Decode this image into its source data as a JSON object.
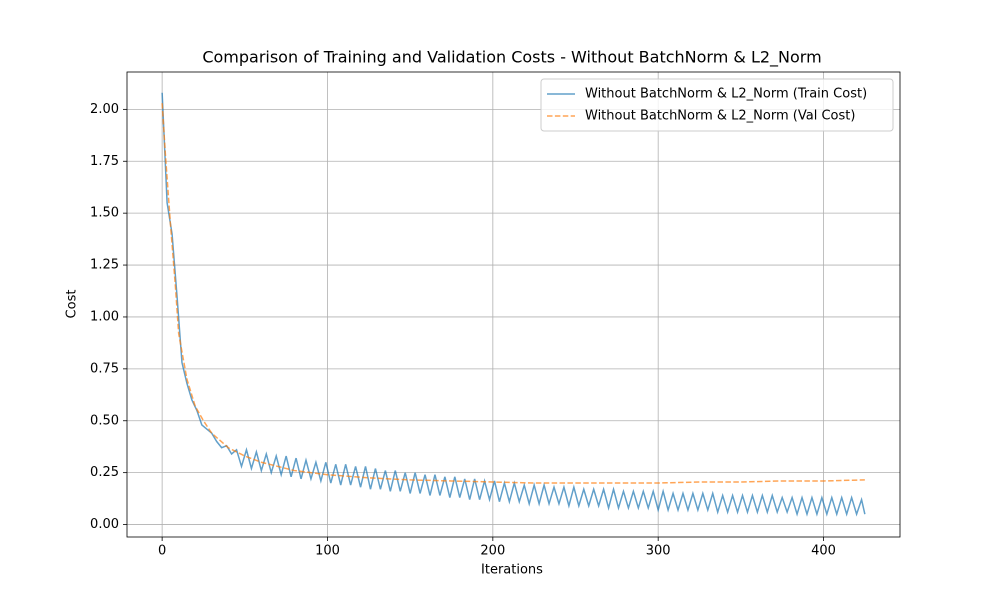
{
  "chart_data": {
    "type": "line",
    "title": "Comparison of Training and Validation Costs - Without BatchNorm & L2_Norm",
    "x_label": "Iterations",
    "y_label": "Cost",
    "xlim": [
      -21.25,
      446.25
    ],
    "ylim": [
      -0.06,
      2.18
    ],
    "xticks": [
      0,
      100,
      200,
      300,
      400
    ],
    "yticks": [
      {
        "value": 0,
        "label": "0.00"
      },
      {
        "value": 0.25,
        "label": "0.25"
      },
      {
        "value": 0.5,
        "label": "0.50"
      },
      {
        "value": 0.75,
        "label": "0.75"
      },
      {
        "value": 1,
        "label": "1.00"
      },
      {
        "value": 1.25,
        "label": "1.25"
      },
      {
        "value": 1.5,
        "label": "1.50"
      },
      {
        "value": 1.75,
        "label": "1.75"
      },
      {
        "value": 2,
        "label": "2.00"
      }
    ],
    "grid": true,
    "legend": "upper right",
    "series": [
      {
        "name": "Without BatchNorm & L2_Norm (Train Cost)",
        "color": "#1f77b4",
        "dashed": false,
        "x": [
          0,
          3,
          6,
          9,
          12,
          15,
          18,
          21,
          24,
          27,
          30,
          33,
          36,
          39,
          42,
          45,
          48,
          51,
          54,
          57,
          60,
          63,
          66,
          69,
          72,
          75,
          78,
          81,
          84,
          87,
          90,
          93,
          96,
          99,
          102,
          105,
          108,
          111,
          114,
          117,
          120,
          123,
          126,
          129,
          132,
          135,
          138,
          141,
          144,
          147,
          150,
          153,
          156,
          159,
          162,
          165,
          168,
          171,
          174,
          177,
          180,
          183,
          186,
          189,
          192,
          195,
          198,
          201,
          204,
          207,
          210,
          213,
          216,
          219,
          222,
          225,
          228,
          231,
          234,
          237,
          240,
          243,
          246,
          249,
          252,
          255,
          258,
          261,
          264,
          267,
          270,
          273,
          276,
          279,
          282,
          285,
          288,
          291,
          294,
          297,
          300,
          303,
          306,
          309,
          312,
          315,
          318,
          321,
          324,
          327,
          330,
          333,
          336,
          339,
          342,
          345,
          348,
          351,
          354,
          357,
          360,
          363,
          366,
          369,
          372,
          375,
          378,
          381,
          384,
          387,
          390,
          393,
          396,
          399,
          402,
          405,
          408,
          411,
          414,
          417,
          420,
          423,
          425
        ],
        "values": [
          2.08,
          1.55,
          1.4,
          1.1,
          0.78,
          0.68,
          0.6,
          0.55,
          0.48,
          0.46,
          0.44,
          0.4,
          0.37,
          0.38,
          0.34,
          0.36,
          0.28,
          0.36,
          0.27,
          0.35,
          0.26,
          0.34,
          0.25,
          0.33,
          0.24,
          0.33,
          0.23,
          0.32,
          0.22,
          0.31,
          0.22,
          0.3,
          0.21,
          0.3,
          0.2,
          0.29,
          0.19,
          0.29,
          0.19,
          0.28,
          0.18,
          0.28,
          0.17,
          0.27,
          0.17,
          0.26,
          0.16,
          0.26,
          0.16,
          0.25,
          0.15,
          0.25,
          0.15,
          0.24,
          0.14,
          0.24,
          0.14,
          0.23,
          0.13,
          0.23,
          0.13,
          0.22,
          0.12,
          0.22,
          0.12,
          0.21,
          0.12,
          0.21,
          0.11,
          0.2,
          0.11,
          0.2,
          0.11,
          0.19,
          0.1,
          0.19,
          0.1,
          0.19,
          0.1,
          0.18,
          0.1,
          0.18,
          0.09,
          0.18,
          0.09,
          0.17,
          0.09,
          0.17,
          0.09,
          0.17,
          0.08,
          0.17,
          0.08,
          0.16,
          0.08,
          0.16,
          0.08,
          0.16,
          0.08,
          0.16,
          0.07,
          0.16,
          0.07,
          0.15,
          0.07,
          0.15,
          0.07,
          0.15,
          0.07,
          0.15,
          0.07,
          0.15,
          0.06,
          0.14,
          0.06,
          0.14,
          0.06,
          0.14,
          0.06,
          0.14,
          0.06,
          0.14,
          0.06,
          0.14,
          0.06,
          0.13,
          0.06,
          0.13,
          0.05,
          0.13,
          0.05,
          0.13,
          0.05,
          0.13,
          0.05,
          0.13,
          0.05,
          0.13,
          0.05,
          0.13,
          0.05,
          0.12,
          0.05
        ]
      },
      {
        "name": "Without BatchNorm & L2_Norm (Val Cost)",
        "color": "#ff7f0e",
        "dashed": true,
        "x": [
          0,
          2,
          5,
          8,
          10,
          15,
          20,
          25,
          30,
          40,
          50,
          60,
          80,
          100,
          125,
          150,
          175,
          200,
          225,
          250,
          275,
          300,
          325,
          350,
          375,
          400,
          425
        ],
        "values": [
          2.03,
          1.78,
          1.45,
          1.15,
          0.92,
          0.7,
          0.57,
          0.5,
          0.44,
          0.37,
          0.33,
          0.3,
          0.26,
          0.24,
          0.225,
          0.215,
          0.21,
          0.205,
          0.2,
          0.2,
          0.2,
          0.2,
          0.205,
          0.205,
          0.21,
          0.21,
          0.215
        ]
      }
    ]
  }
}
